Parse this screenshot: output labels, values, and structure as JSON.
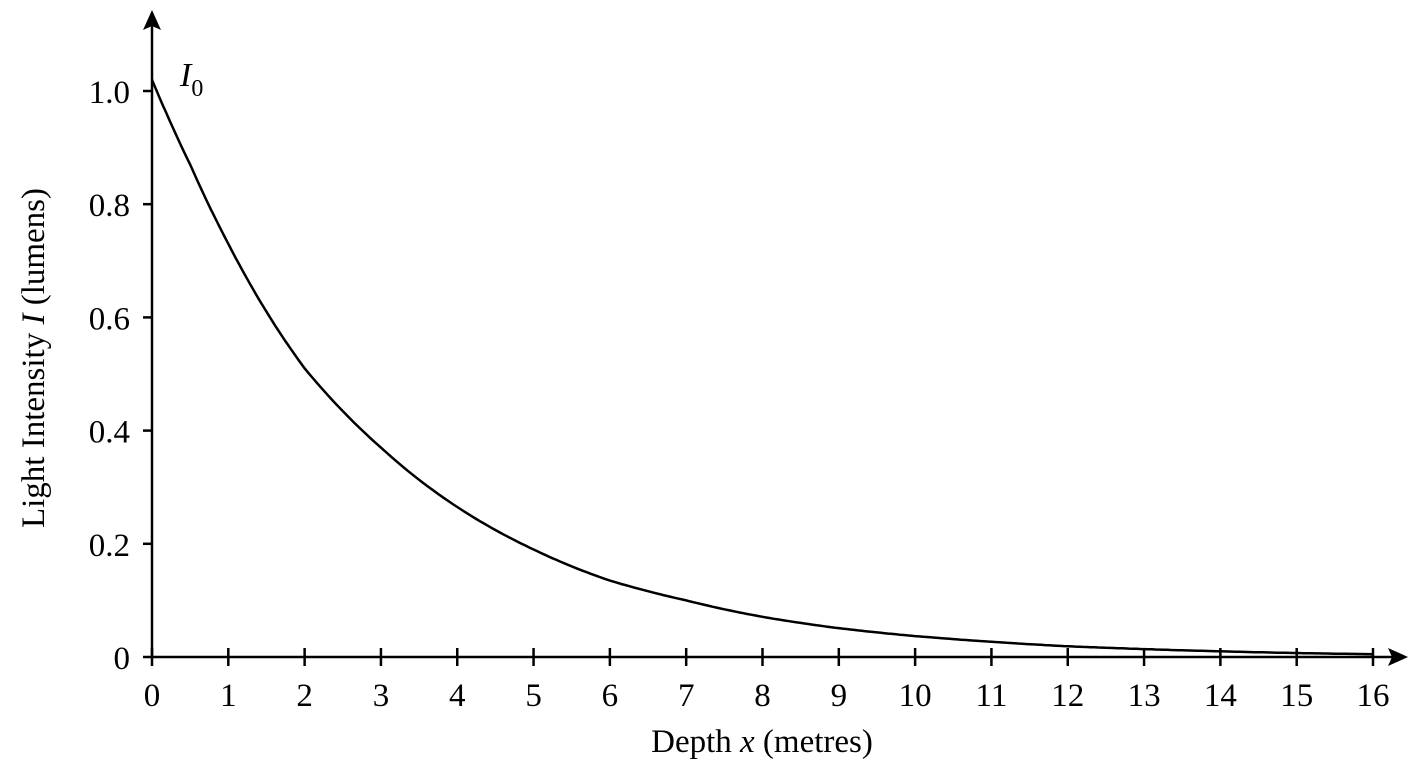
{
  "chart_data": {
    "type": "line",
    "title": "",
    "xlabel": {
      "prefix": "Depth ",
      "variable": "x",
      "suffix": " (metres)"
    },
    "ylabel": {
      "prefix": "Light Intensity ",
      "variable": "I",
      "suffix": " (lumens)"
    },
    "xlim": [
      0,
      16
    ],
    "ylim": [
      0,
      1.0
    ],
    "x_ticks": [
      0,
      1,
      2,
      3,
      4,
      5,
      6,
      7,
      8,
      9,
      10,
      11,
      12,
      13,
      14,
      15,
      16
    ],
    "x_tick_labels": [
      "0",
      "1",
      "2",
      "3",
      "4",
      "5",
      "6",
      "7",
      "8",
      "9",
      "10",
      "11",
      "12",
      "13",
      "14",
      "15",
      "16"
    ],
    "y_ticks": [
      0,
      0.2,
      0.4,
      0.6,
      0.8,
      1.0
    ],
    "y_tick_labels": [
      "0",
      "0.2",
      "0.4",
      "0.6",
      "0.8",
      "1.0"
    ],
    "grid": false,
    "annotation": {
      "symbol": "I",
      "subscript": "0"
    },
    "series": [
      {
        "x": [
          0,
          0.5,
          1,
          1.5,
          2,
          3,
          4,
          5,
          6,
          7,
          8,
          9,
          10,
          11,
          12,
          13,
          14,
          15,
          16
        ],
        "y": [
          1.02,
          0.87,
          0.73,
          0.61,
          0.51,
          0.37,
          0.265,
          0.19,
          0.135,
          0.1,
          0.071,
          0.051,
          0.037,
          0.027,
          0.019,
          0.014,
          0.01,
          0.007,
          0.005
        ]
      }
    ],
    "colors": {
      "line": "#000000"
    }
  }
}
